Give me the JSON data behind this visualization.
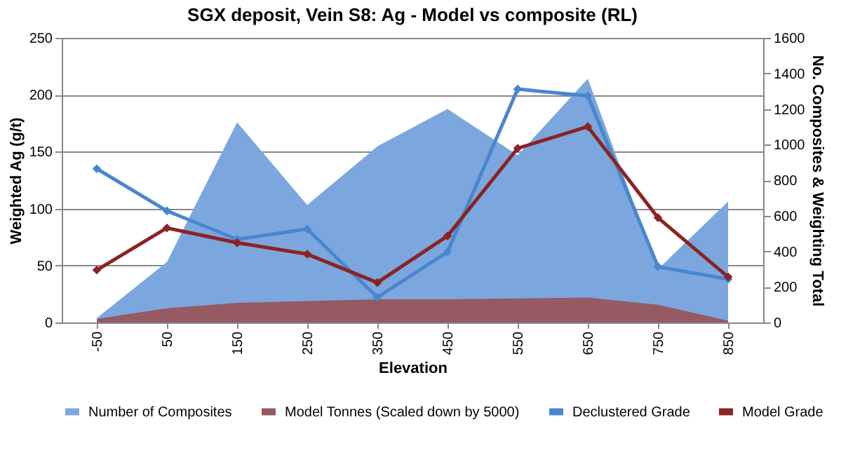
{
  "chart_data": {
    "type": "area",
    "title": "SGX deposit, Vein S8: Ag - Model vs composite (RL)",
    "xlabel": "Elevation",
    "ylabel": "Weighted Ag (g/t)",
    "y2label": "No. Composites & Weighting Total",
    "categories": [
      "-50",
      "50",
      "150",
      "250",
      "350",
      "450",
      "550",
      "650",
      "750",
      "850"
    ],
    "series": [
      {
        "name": "Number of Composites",
        "axis": "y2",
        "color": "#7ba7de",
        "values": [
          25,
          340,
          1125,
          660,
          990,
          1200,
          940,
          1370,
          300,
          680
        ]
      },
      {
        "name": "Model Tonnes (Scaled down by 5000)",
        "axis": "y2",
        "color": "#955a62",
        "values": [
          20,
          80,
          110,
          120,
          130,
          130,
          135,
          140,
          100,
          10
        ]
      },
      {
        "name": "Declustered Grade",
        "type": "line",
        "color": "#4a86cf",
        "marker": "diamond",
        "values": [
          135,
          98,
          73,
          82,
          22,
          62,
          205,
          199,
          49,
          38
        ]
      },
      {
        "name": "Model Grade",
        "type": "line",
        "color": "#8b2323",
        "marker": "diamond",
        "values": [
          46,
          83,
          70,
          60,
          35,
          76,
          153,
          172,
          92,
          40
        ]
      }
    ],
    "ylim": [
      0,
      250
    ],
    "yticks": [
      0,
      50,
      100,
      150,
      200,
      250
    ],
    "y2lim": [
      0,
      1600
    ],
    "y2ticks": [
      0,
      200,
      400,
      600,
      800,
      1000,
      1200,
      1400,
      1600
    ],
    "grid": "y",
    "legend": "bottom",
    "line_style": "solid"
  }
}
